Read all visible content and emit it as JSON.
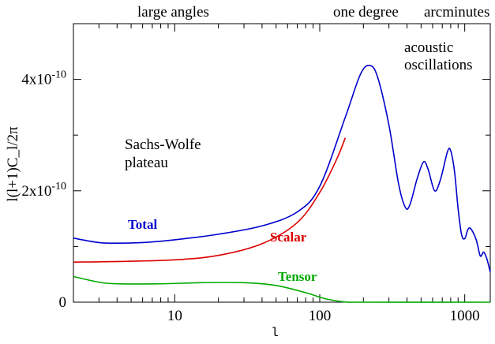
{
  "chart_data": {
    "type": "line",
    "title": "",
    "xlabel": "l",
    "ylabel": "l(l+1)C_l/2π",
    "xscale": "log",
    "xlim": [
      2,
      1500
    ],
    "ylim": [
      0,
      5e-10
    ],
    "xticks": [
      {
        "value": 10,
        "label": "10"
      },
      {
        "value": 100,
        "label": "100"
      },
      {
        "value": 1000,
        "label": "1000"
      }
    ],
    "yticks": [
      {
        "value": 0,
        "label": "0",
        "exp": ""
      },
      {
        "value": 2e-10,
        "label": "2x10",
        "exp": "-10"
      },
      {
        "value": 4e-10,
        "label": "4x10",
        "exp": "-10"
      }
    ],
    "grid": false,
    "top_annotations": [
      "large angles",
      "one degree",
      "arcminutes"
    ],
    "annotations": [
      {
        "lines": [
          "acoustic",
          "oscillations"
        ]
      },
      {
        "lines": [
          "Sachs-Wolfe",
          "plateau"
        ]
      }
    ],
    "series": [
      {
        "name": "Total",
        "color": "#0000cc",
        "points": [
          [
            2,
            1.15e-10
          ],
          [
            3,
            1.07e-10
          ],
          [
            4,
            1.06e-10
          ],
          [
            6,
            1.07e-10
          ],
          [
            10,
            1.12e-10
          ],
          [
            20,
            1.22e-10
          ],
          [
            40,
            1.37e-10
          ],
          [
            70,
            1.62e-10
          ],
          [
            100,
            2.08e-10
          ],
          [
            150,
            3.32e-10
          ],
          [
            190,
            4.08e-10
          ],
          [
            220,
            4.25e-10
          ],
          [
            250,
            4.05e-10
          ],
          [
            300,
            3.18e-10
          ],
          [
            350,
            2.12e-10
          ],
          [
            390,
            1.7e-10
          ],
          [
            420,
            1.76e-10
          ],
          [
            470,
            2.22e-10
          ],
          [
            520,
            2.52e-10
          ],
          [
            560,
            2.38e-10
          ],
          [
            620,
            2e-10
          ],
          [
            680,
            2.2e-10
          ],
          [
            760,
            2.7e-10
          ],
          [
            800,
            2.72e-10
          ],
          [
            850,
            2.35e-10
          ],
          [
            900,
            1.68e-10
          ],
          [
            950,
            1.22e-10
          ],
          [
            1000,
            1.14e-10
          ],
          [
            1050,
            1.3e-10
          ],
          [
            1100,
            1.32e-10
          ],
          [
            1200,
            1.12e-10
          ],
          [
            1280,
            8.3e-11
          ],
          [
            1350,
            9e-11
          ],
          [
            1420,
            7.8e-11
          ],
          [
            1500,
            5.4e-11
          ]
        ]
      },
      {
        "name": "Scalar",
        "color": "#dd0000",
        "points": [
          [
            2,
            7.2e-11
          ],
          [
            4,
            7.3e-11
          ],
          [
            10,
            7.6e-11
          ],
          [
            20,
            8.4e-11
          ],
          [
            40,
            1.05e-10
          ],
          [
            70,
            1.43e-10
          ],
          [
            100,
            1.97e-10
          ],
          [
            130,
            2.55e-10
          ],
          [
            150,
            2.95e-10
          ]
        ]
      },
      {
        "name": "Tensor",
        "color": "#00aa00",
        "points": [
          [
            2,
            4.6e-11
          ],
          [
            3,
            3.6e-11
          ],
          [
            4,
            3.3e-11
          ],
          [
            8,
            3.3e-11
          ],
          [
            15,
            3.5e-11
          ],
          [
            30,
            3.5e-11
          ],
          [
            50,
            3e-11
          ],
          [
            80,
            1.7e-11
          ],
          [
            110,
            6e-12
          ],
          [
            150,
            5e-13
          ],
          [
            200,
            0
          ],
          [
            1500,
            0
          ]
        ]
      }
    ]
  }
}
